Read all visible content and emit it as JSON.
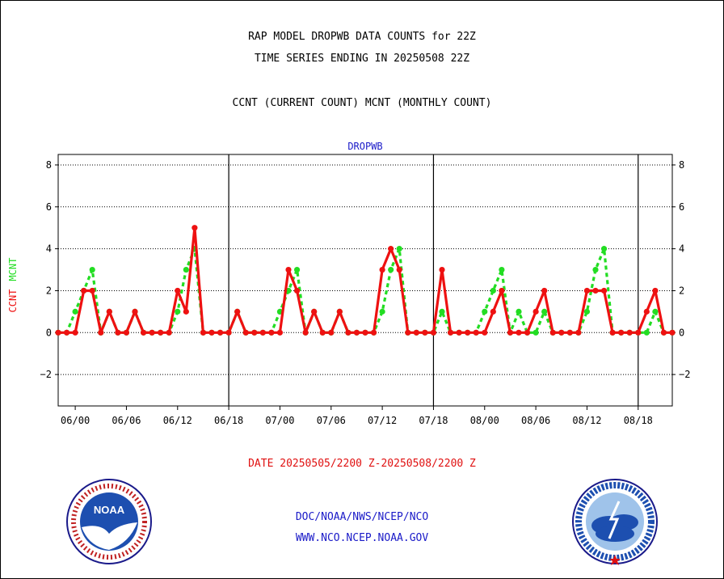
{
  "header": {
    "title_line1": "RAP MODEL DROPWB DATA COUNTS for 22Z",
    "title_line2": "TIME SERIES ENDING IN 20250508 22Z",
    "title_line3": "CCNT (CURRENT COUNT) MCNT (MONTHLY COUNT)"
  },
  "footer": {
    "date_range": "DATE 20250505/2200 Z-20250508/2200 Z",
    "org_path": "DOC/NOAA/NWS/NCEP/NCO",
    "website": "WWW.NCO.NCEP.NOAA.GOV"
  },
  "logos": {
    "left": {
      "name": "noaa-logo",
      "text": "NOAA"
    },
    "right": {
      "name": "nws-logo",
      "text": "NATIONAL WEATHER SERVICE"
    }
  },
  "colors": {
    "ccnt": "#ee1111",
    "mcnt": "#22dd22",
    "label_blue": "#1a1ac8",
    "axis": "#000000"
  },
  "chart_data": {
    "type": "line",
    "title": "DROPWB",
    "ylabel_series": [
      "CCNT",
      "MCNT"
    ],
    "ylim": [
      -3.5,
      8.5
    ],
    "yticks": [
      -2,
      0,
      2,
      4,
      6,
      8
    ],
    "xlim": [
      0,
      72
    ],
    "x_tick_positions": [
      2,
      8,
      14,
      20,
      26,
      32,
      38,
      44,
      50,
      56,
      62,
      68
    ],
    "x_tick_labels": [
      "06/00",
      "06/06",
      "06/12",
      "06/18",
      "07/00",
      "07/06",
      "07/12",
      "07/18",
      "08/00",
      "08/06",
      "08/12",
      "08/18"
    ],
    "day_boundaries": [
      20,
      44,
      68
    ],
    "grid": true,
    "series": [
      {
        "name": "CCNT",
        "x": [
          0,
          1,
          2,
          3,
          4,
          5,
          6,
          7,
          8,
          9,
          10,
          11,
          12,
          13,
          14,
          15,
          16,
          17,
          18,
          19,
          20,
          21,
          22,
          23,
          24,
          25,
          26,
          27,
          28,
          29,
          30,
          31,
          32,
          33,
          34,
          35,
          36,
          37,
          38,
          39,
          40,
          41,
          42,
          43,
          44,
          45,
          46,
          47,
          48,
          49,
          50,
          51,
          52,
          53,
          54,
          55,
          56,
          57,
          58,
          59,
          60,
          61,
          62,
          63,
          64,
          65,
          66,
          67,
          68,
          69,
          70,
          71,
          72
        ],
        "values": [
          0,
          0,
          0,
          2,
          2,
          0,
          1,
          0,
          0,
          1,
          0,
          0,
          0,
          0,
          2,
          1,
          5,
          0,
          0,
          0,
          0,
          1,
          0,
          0,
          0,
          0,
          0,
          3,
          2,
          0,
          1,
          0,
          0,
          1,
          0,
          0,
          0,
          0,
          3,
          4,
          3,
          0,
          0,
          0,
          0,
          3,
          0,
          0,
          0,
          0,
          0,
          1,
          2,
          0,
          0,
          0,
          1,
          2,
          0,
          0,
          0,
          0,
          2,
          2,
          2,
          0,
          0,
          0,
          0,
          1,
          2,
          0,
          0
        ]
      },
      {
        "name": "MCNT",
        "x": [
          0,
          1,
          2,
          3,
          4,
          5,
          6,
          7,
          8,
          9,
          10,
          11,
          12,
          13,
          14,
          15,
          16,
          17,
          18,
          19,
          20,
          21,
          22,
          23,
          24,
          25,
          26,
          27,
          28,
          29,
          30,
          31,
          32,
          33,
          34,
          35,
          36,
          37,
          38,
          39,
          40,
          41,
          42,
          43,
          44,
          45,
          46,
          47,
          48,
          49,
          50,
          51,
          52,
          53,
          54,
          55,
          56,
          57,
          58,
          59,
          60,
          61,
          62,
          63,
          64,
          65,
          66,
          67,
          68,
          69,
          70,
          71,
          72
        ],
        "values": [
          0,
          0,
          1,
          2,
          3,
          0,
          1,
          0,
          0,
          1,
          0,
          0,
          0,
          0,
          1,
          3,
          4,
          0,
          0,
          0,
          0,
          1,
          0,
          0,
          0,
          0,
          1,
          2,
          3,
          0,
          1,
          0,
          0,
          1,
          0,
          0,
          0,
          0,
          1,
          3,
          4,
          0,
          0,
          0,
          0,
          1,
          0,
          0,
          0,
          0,
          1,
          2,
          3,
          0,
          1,
          0,
          0,
          1,
          0,
          0,
          0,
          0,
          1,
          3,
          4,
          0,
          0,
          0,
          0,
          0,
          1,
          0,
          0
        ]
      }
    ]
  }
}
